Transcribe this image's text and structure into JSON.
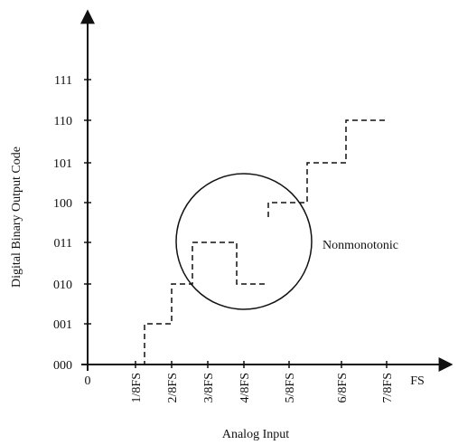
{
  "y_axis": {
    "title": "Digital Binary Output Code",
    "ticks": [
      "000",
      "001",
      "010",
      "011",
      "100",
      "101",
      "110",
      "111"
    ]
  },
  "x_axis": {
    "title": "Analog Input",
    "origin": "0",
    "ticks": [
      "1/8FS",
      "2/8FS",
      "3/8FS",
      "4/8FS",
      "5/8FS",
      "6/8FS",
      "7/8FS"
    ],
    "end_label": "FS"
  },
  "annotation": "Nonmonotonic"
}
